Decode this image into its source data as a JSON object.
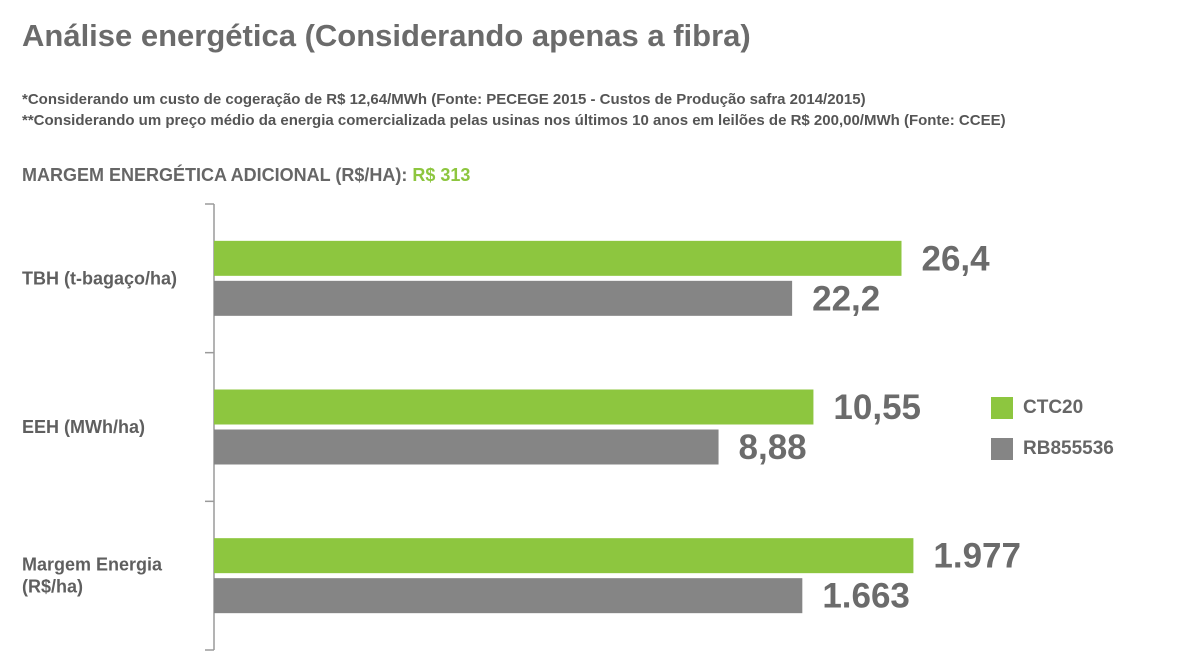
{
  "title": "Análise energética (Considerando apenas a fibra)",
  "notes": [
    "*Considerando um custo de cogeração de R$ 12,64/MWh (Fonte: PECEGE 2015 - Custos de Produção safra 2014/2015)",
    "**Considerando um preço médio da energia comercializada pelas usinas nos últimos 10 anos em leilões de R$ 200,00/MWh (Fonte: CCEE)"
  ],
  "margin": {
    "label": "MARGEM ENERGÉTICA ADICIONAL (R$/HA):",
    "value": "R$ 313"
  },
  "colors": {
    "ctc20": "#8dc63f",
    "rb855536": "#858585",
    "axis": "#9a9a9a",
    "value_text": "#6b6b6b"
  },
  "chart_data": {
    "type": "bar",
    "orientation": "horizontal",
    "categories": [
      "TBH (t-bagaço/ha)",
      "EEH (MWh/ha)",
      "Margem Energia (R$/ha)"
    ],
    "series": [
      {
        "name": "CTC20",
        "values": [
          26.4,
          10.55,
          1977
        ],
        "labels": [
          "26,4",
          "10,55",
          "1.977"
        ]
      },
      {
        "name": "RB855536",
        "values": [
          22.2,
          8.88,
          1663
        ],
        "labels": [
          "22,2",
          "8,88",
          "1.663"
        ]
      }
    ],
    "scale_note": "each category drawn on its own scale",
    "category_max": [
      28.8,
      13.2,
      2120
    ],
    "legend": {
      "position": "right"
    },
    "grid": false
  }
}
